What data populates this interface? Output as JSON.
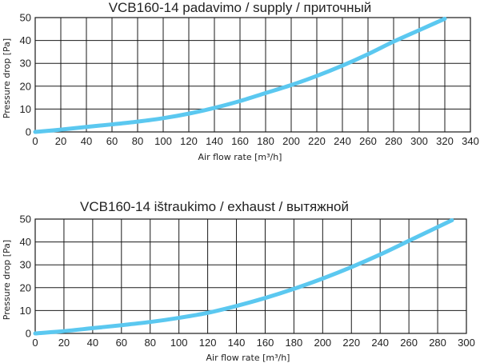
{
  "chart_data": [
    {
      "type": "line",
      "title": "VCB160-14 padavimo / supply / приточный",
      "xlabel": "Air flow rate [m³/h]",
      "ylabel": "Pressure drop [Pa]",
      "xlim": [
        0,
        340
      ],
      "ylim": [
        0,
        50
      ],
      "x_ticks": [
        0,
        20,
        40,
        60,
        80,
        100,
        120,
        140,
        160,
        180,
        200,
        220,
        240,
        260,
        280,
        300,
        320,
        340
      ],
      "y_ticks": [
        0,
        10,
        20,
        30,
        40,
        50
      ],
      "grid": true,
      "line_color": "#5bc8f0",
      "series": [
        {
          "x": [
            0,
            20,
            40,
            60,
            80,
            100,
            120,
            140,
            160,
            180,
            200,
            220,
            240,
            260,
            280,
            300,
            320
          ],
          "y": [
            0,
            1.0,
            2.2,
            3.3,
            4.5,
            6.0,
            8.0,
            10.5,
            13.5,
            17.0,
            20.5,
            24.5,
            29.0,
            34.0,
            39.5,
            44.5,
            49.5
          ]
        }
      ]
    },
    {
      "type": "line",
      "title": "VCB160-14 ištraukimo / exhaust / вытяжной",
      "xlabel": "Air flow rate [m³/h]",
      "ylabel": "Pressure drop [Pa]",
      "xlim": [
        0,
        300
      ],
      "ylim": [
        0,
        50
      ],
      "x_ticks": [
        0,
        20,
        40,
        60,
        80,
        100,
        120,
        140,
        160,
        180,
        200,
        220,
        240,
        260,
        280,
        300
      ],
      "y_ticks": [
        0,
        10,
        20,
        30,
        40,
        50
      ],
      "grid": true,
      "line_color": "#5bc8f0",
      "series": [
        {
          "x": [
            0,
            20,
            40,
            60,
            80,
            100,
            120,
            140,
            160,
            180,
            200,
            220,
            240,
            260,
            280,
            290
          ],
          "y": [
            0,
            1.0,
            2.3,
            3.6,
            5.0,
            6.8,
            9.0,
            12.0,
            15.5,
            19.5,
            24.0,
            29.0,
            34.5,
            40.5,
            46.5,
            49.5
          ]
        }
      ]
    }
  ]
}
